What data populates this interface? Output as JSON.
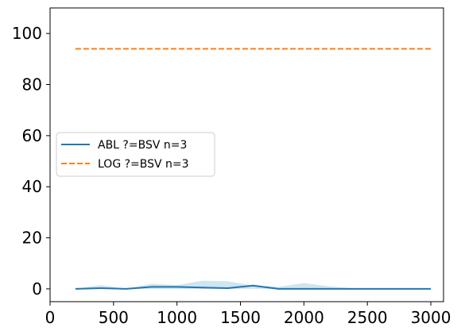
{
  "chart_data": {
    "type": "line",
    "title": "",
    "xlabel": "",
    "ylabel": "",
    "xlim": [
      0,
      3100
    ],
    "ylim": [
      -5,
      110
    ],
    "xticks": [
      0,
      500,
      1000,
      1500,
      2000,
      2500,
      3000
    ],
    "yticks": [
      0,
      20,
      40,
      60,
      80,
      100
    ],
    "grid": false,
    "legend_position": "center-left",
    "series": [
      {
        "name": "ABL ?=BSV n=3",
        "color": "#1f77b4",
        "line_style": "solid",
        "x": [
          200,
          400,
          600,
          800,
          1000,
          1200,
          1400,
          1600,
          1800,
          2000,
          2200,
          2400,
          2600,
          2800,
          3000
        ],
        "y": [
          0,
          0.3,
          0,
          0.8,
          0.8,
          0.5,
          0.3,
          1.3,
          0,
          0,
          0,
          0,
          0,
          0,
          0
        ],
        "band_upper": [
          0,
          1.5,
          0,
          2.0,
          1.5,
          3.2,
          3.0,
          1.3,
          0.8,
          2.3,
          1.0,
          0.2,
          0,
          0,
          0
        ],
        "band_lower": [
          0,
          0,
          0,
          0,
          0,
          0,
          0,
          0,
          0,
          0,
          0,
          0,
          0,
          0,
          0
        ],
        "band_color": "#a6c9dc"
      },
      {
        "name": "LOG ?=BSV n=3",
        "color": "#ff7f0e",
        "line_style": "dashed",
        "x": [
          200,
          3000
        ],
        "y": [
          94,
          94
        ]
      }
    ]
  }
}
